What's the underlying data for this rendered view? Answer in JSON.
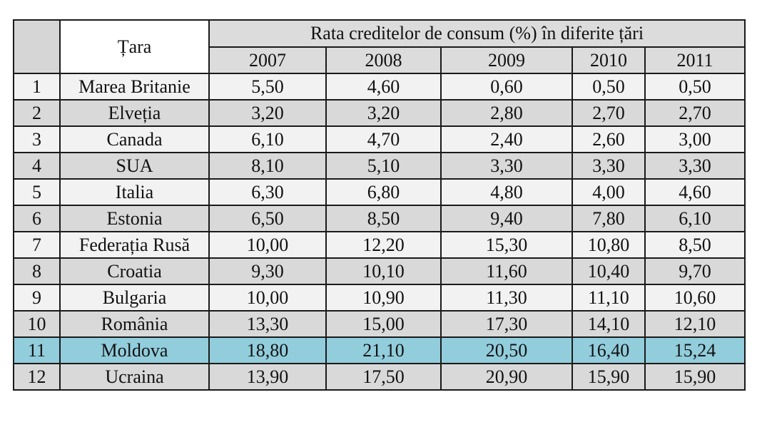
{
  "table": {
    "country_header": "Țara",
    "group_header": "Rata creditelor de consum (%) în diferite țări",
    "years": [
      "2007",
      "2008",
      "2009",
      "2010",
      "2011"
    ],
    "highlight_row": 11,
    "highlight_color": "#92cddc",
    "rows": [
      {
        "num": "1",
        "country": "Marea Britanie",
        "values": [
          "5,50",
          "4,60",
          "0,60",
          "0,50",
          "0,50"
        ]
      },
      {
        "num": "2",
        "country": "Elveția",
        "values": [
          "3,20",
          "3,20",
          "2,80",
          "2,70",
          "2,70"
        ]
      },
      {
        "num": "3",
        "country": "Canada",
        "values": [
          "6,10",
          "4,70",
          "2,40",
          "2,60",
          "3,00"
        ]
      },
      {
        "num": "4",
        "country": "SUA",
        "values": [
          "8,10",
          "5,10",
          "3,30",
          "3,30",
          "3,30"
        ]
      },
      {
        "num": "5",
        "country": "Italia",
        "values": [
          "6,30",
          "6,80",
          "4,80",
          "4,00",
          "4,60"
        ]
      },
      {
        "num": "6",
        "country": "Estonia",
        "values": [
          "6,50",
          "8,50",
          "9,40",
          "7,80",
          "6,10"
        ]
      },
      {
        "num": "7",
        "country": "Federația Rusă",
        "values": [
          "10,00",
          "12,20",
          "15,30",
          "10,80",
          "8,50"
        ]
      },
      {
        "num": "8",
        "country": "Croatia",
        "values": [
          "9,30",
          "10,10",
          "11,60",
          "10,40",
          "9,70"
        ]
      },
      {
        "num": "9",
        "country": "Bulgaria",
        "values": [
          "10,00",
          "10,90",
          "11,30",
          "11,10",
          "10,60"
        ]
      },
      {
        "num": "10",
        "country": "România",
        "values": [
          "13,30",
          "15,00",
          "17,30",
          "14,10",
          "12,10"
        ]
      },
      {
        "num": "11",
        "country": "Moldova",
        "values": [
          "18,80",
          "21,10",
          "20,50",
          "16,40",
          "15,24"
        ]
      },
      {
        "num": "12",
        "country": "Ucraina",
        "values": [
          "13,90",
          "17,50",
          "20,90",
          "15,90",
          "15,90"
        ]
      }
    ]
  }
}
